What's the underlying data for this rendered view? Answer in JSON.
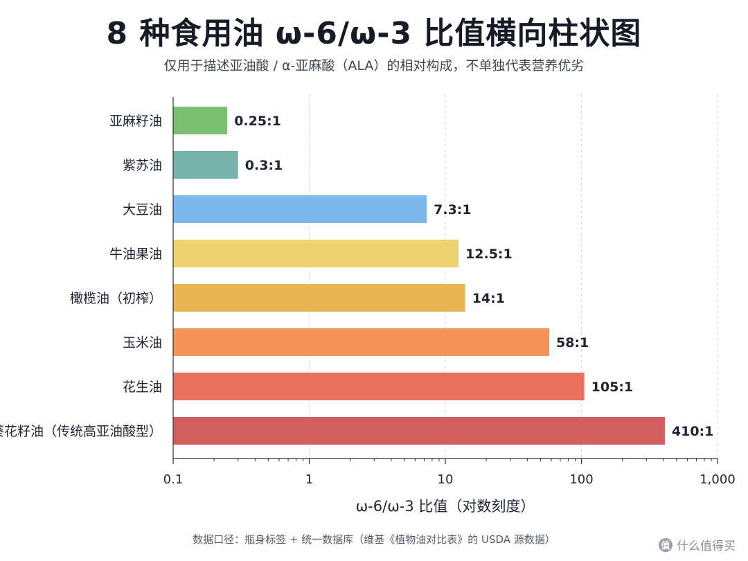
{
  "title": "8 种食用油 ω-6/ω-3 比值横向柱状图",
  "subtitle": "仅用于描述亚油酸 / α-亚麻酸（ALA）的相对构成，不单独代表营养优劣",
  "source_note": "数据口径：瓶身标签 + 统一数据库（维基《植物油对比表》的 USDA 源数据）",
  "watermark": "什么值得买",
  "chart_data": {
    "type": "bar",
    "orientation": "horizontal",
    "xscale": "log",
    "xlim": [
      0.1,
      1000
    ],
    "xticks": [
      0.1,
      1,
      10,
      100,
      1000
    ],
    "xtick_labels": [
      "0.1",
      "1",
      "10",
      "100",
      "1,000"
    ],
    "xlabel": "ω-6/ω-3 比值（对数刻度）",
    "ylabel": "",
    "grid": true,
    "categories": [
      "亚麻籽油",
      "紫苏油",
      "大豆油",
      "牛油果油",
      "橄榄油（初榨）",
      "玉米油",
      "花生油",
      "葵花籽油（传统高亚油酸型）"
    ],
    "values": [
      0.25,
      0.3,
      7.3,
      12.5,
      14,
      58,
      105,
      410
    ],
    "value_labels": [
      "0.25:1",
      "0.3:1",
      "7.3:1",
      "12.5:1",
      "14:1",
      "58:1",
      "105:1",
      "410:1"
    ],
    "colors": [
      "#7cbf73",
      "#76b4a9",
      "#7db8ec",
      "#ecd36f",
      "#e7b552",
      "#f4935a",
      "#e9705c",
      "#d25e60"
    ]
  }
}
